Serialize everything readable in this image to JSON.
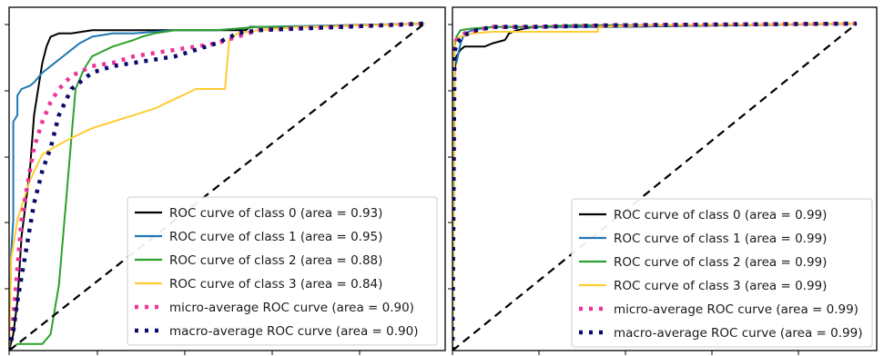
{
  "chart_data": [
    {
      "type": "line",
      "title": "",
      "xlabel": "",
      "ylabel": "",
      "xlim": [
        0,
        1.05
      ],
      "ylim": [
        0,
        1.05
      ],
      "grid": false,
      "legend_position": "lower-right",
      "series": [
        {
          "name": "ROC curve of class 0 (area = 0.93)",
          "color": "#000000",
          "style": "solid",
          "x": [
            0,
            0.01,
            0.02,
            0.03,
            0.05,
            0.06,
            0.07,
            0.08,
            0.09,
            0.1,
            0.12,
            0.15,
            0.2,
            0.25,
            0.3,
            0.42,
            0.5,
            0.57,
            0.58,
            0.7,
            1.0
          ],
          "y": [
            0,
            0.05,
            0.15,
            0.35,
            0.55,
            0.72,
            0.8,
            0.88,
            0.93,
            0.96,
            0.97,
            0.97,
            0.98,
            0.98,
            0.98,
            0.98,
            0.98,
            0.98,
            0.99,
            0.99,
            1.0
          ]
        },
        {
          "name": "ROC curve of class 1 (area = 0.95)",
          "color": "#1f77b4",
          "style": "solid",
          "x": [
            0,
            0.005,
            0.01,
            0.01,
            0.02,
            0.02,
            0.03,
            0.05,
            0.06,
            0.08,
            0.09,
            0.11,
            0.13,
            0.15,
            0.17,
            0.2,
            0.25,
            0.3,
            0.4,
            0.5,
            0.6,
            1.0
          ],
          "y": [
            0,
            0.3,
            0.4,
            0.7,
            0.72,
            0.78,
            0.8,
            0.81,
            0.82,
            0.85,
            0.86,
            0.88,
            0.9,
            0.92,
            0.94,
            0.96,
            0.97,
            0.97,
            0.98,
            0.98,
            0.99,
            1.0
          ]
        },
        {
          "name": "ROC curve of class 2 (area = 0.88)",
          "color": "#2ca02c",
          "style": "solid",
          "x": [
            0,
            0.02,
            0.08,
            0.1,
            0.12,
            0.13,
            0.14,
            0.15,
            0.16,
            0.18,
            0.2,
            0.25,
            0.3,
            0.32,
            0.35,
            0.4,
            0.45,
            0.5,
            0.6,
            0.7,
            1.0
          ],
          "y": [
            0,
            0.02,
            0.02,
            0.05,
            0.2,
            0.35,
            0.5,
            0.65,
            0.8,
            0.86,
            0.9,
            0.93,
            0.95,
            0.96,
            0.97,
            0.98,
            0.98,
            0.98,
            0.99,
            0.99,
            1.0
          ]
        },
        {
          "name": "ROC curve of class 3 (area = 0.84)",
          "color": "#ffcc33",
          "style": "solid",
          "x": [
            0,
            0.005,
            0.02,
            0.05,
            0.08,
            0.12,
            0.15,
            0.2,
            0.25,
            0.3,
            0.35,
            0.4,
            0.45,
            0.5,
            0.52,
            0.53,
            0.55,
            0.6,
            0.7,
            1.0
          ],
          "y": [
            0,
            0.28,
            0.4,
            0.52,
            0.6,
            0.63,
            0.65,
            0.68,
            0.7,
            0.72,
            0.74,
            0.77,
            0.8,
            0.8,
            0.8,
            0.95,
            0.97,
            0.98,
            0.99,
            1.0
          ]
        },
        {
          "name": "micro-average ROC curve (area = 0.90)",
          "color": "#ee3399",
          "style": "dotted",
          "x": [
            0,
            0.01,
            0.02,
            0.03,
            0.05,
            0.06,
            0.07,
            0.08,
            0.1,
            0.12,
            0.15,
            0.2,
            0.25,
            0.3,
            0.35,
            0.4,
            0.5,
            0.55,
            0.6,
            1.0
          ],
          "y": [
            0,
            0.1,
            0.25,
            0.4,
            0.55,
            0.62,
            0.66,
            0.7,
            0.76,
            0.8,
            0.84,
            0.87,
            0.88,
            0.9,
            0.91,
            0.92,
            0.94,
            0.96,
            0.98,
            1.0
          ]
        },
        {
          "name": "macro-average ROC curve (area = 0.90)",
          "color": "#0b0b6e",
          "style": "dotted",
          "x": [
            0,
            0.01,
            0.02,
            0.04,
            0.06,
            0.08,
            0.1,
            0.12,
            0.15,
            0.2,
            0.25,
            0.3,
            0.35,
            0.4,
            0.45,
            0.5,
            0.55,
            0.6,
            1.0
          ],
          "y": [
            0,
            0.06,
            0.15,
            0.3,
            0.45,
            0.55,
            0.62,
            0.72,
            0.8,
            0.85,
            0.87,
            0.88,
            0.89,
            0.9,
            0.92,
            0.94,
            0.97,
            0.98,
            1.0
          ]
        },
        {
          "name": "",
          "color": "#000000",
          "style": "dashed",
          "x": [
            0,
            1.0
          ],
          "y": [
            0,
            1.0
          ]
        }
      ]
    },
    {
      "type": "line",
      "title": "",
      "xlabel": "",
      "ylabel": "",
      "xlim": [
        0,
        1.05
      ],
      "ylim": [
        0,
        1.05
      ],
      "grid": false,
      "legend_position": "lower-right",
      "series": [
        {
          "name": "ROC curve of class 0 (area = 0.99)",
          "color": "#000000",
          "style": "solid",
          "x": [
            0,
            0.005,
            0.01,
            0.02,
            0.03,
            0.05,
            0.08,
            0.1,
            0.13,
            0.14,
            0.16,
            0.2,
            0.4,
            1.0
          ],
          "y": [
            0,
            0.85,
            0.9,
            0.92,
            0.93,
            0.93,
            0.93,
            0.94,
            0.95,
            0.97,
            0.98,
            0.99,
            0.99,
            1.0
          ]
        },
        {
          "name": "ROC curve of class 1 (area = 0.99)",
          "color": "#1f77b4",
          "style": "solid",
          "x": [
            0,
            0.005,
            0.01,
            0.02,
            0.03,
            0.05,
            0.1,
            0.2,
            0.4,
            1.0
          ],
          "y": [
            0,
            0.9,
            0.88,
            0.94,
            0.97,
            0.98,
            0.99,
            0.99,
            0.99,
            1.0
          ]
        },
        {
          "name": "ROC curve of class 2 (area = 0.99)",
          "color": "#2ca02c",
          "style": "solid",
          "x": [
            0,
            0.005,
            0.01,
            0.02,
            0.05,
            0.1,
            0.2,
            0.3,
            0.5,
            1.0
          ],
          "y": [
            0,
            0.93,
            0.96,
            0.98,
            0.985,
            0.99,
            0.99,
            0.995,
            0.995,
            1.0
          ]
        },
        {
          "name": "ROC curve of class 3 (area = 0.99)",
          "color": "#ffcc33",
          "style": "solid",
          "x": [
            0,
            0.005,
            0.02,
            0.05,
            0.1,
            0.2,
            0.3,
            0.36,
            0.36,
            0.5,
            1.0
          ],
          "y": [
            0,
            0.95,
            0.96,
            0.97,
            0.975,
            0.975,
            0.975,
            0.975,
            0.99,
            0.995,
            1.0
          ]
        },
        {
          "name": "micro-average ROC curve (area = 0.99)",
          "color": "#ee3399",
          "style": "dotted",
          "x": [
            0,
            0.005,
            0.01,
            0.03,
            0.06,
            0.1,
            0.2,
            0.4,
            1.0
          ],
          "y": [
            0,
            0.92,
            0.95,
            0.97,
            0.98,
            0.99,
            0.99,
            0.995,
            1.0
          ]
        },
        {
          "name": "macro-average ROC curve (area = 0.99)",
          "color": "#0b0b6e",
          "style": "dotted",
          "x": [
            0,
            0.005,
            0.01,
            0.03,
            0.06,
            0.1,
            0.2,
            0.4,
            1.0
          ],
          "y": [
            0,
            0.91,
            0.94,
            0.965,
            0.98,
            0.99,
            0.99,
            0.995,
            1.0
          ]
        },
        {
          "name": "",
          "color": "#000000",
          "style": "dashed",
          "x": [
            0,
            1.0
          ],
          "y": [
            0,
            1.0
          ]
        }
      ]
    }
  ]
}
